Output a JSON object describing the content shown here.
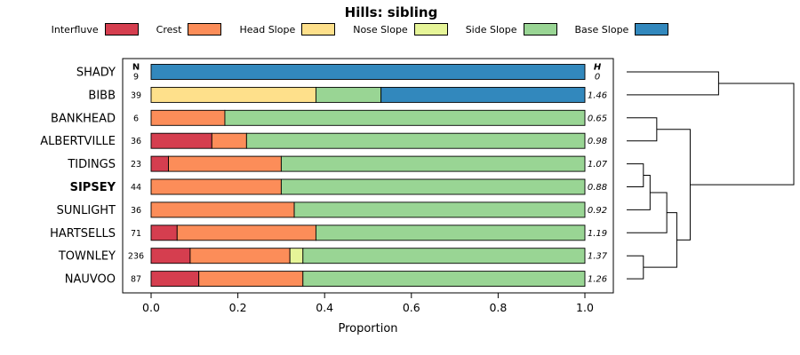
{
  "title": "Hills: sibling",
  "legend": [
    {
      "label": "Interfluve",
      "color": "#d53e4f"
    },
    {
      "label": "Crest",
      "color": "#fc8d59"
    },
    {
      "label": "Head Slope",
      "color": "#fee08b"
    },
    {
      "label": "Nose Slope",
      "color": "#e6f598"
    },
    {
      "label": "Side Slope",
      "color": "#99d594"
    },
    {
      "label": "Base Slope",
      "color": "#3288bd"
    }
  ],
  "chart_data": {
    "type": "bar",
    "orientation": "horizontal",
    "stacked": true,
    "title": "Hills: sibling",
    "xlabel": "Proportion",
    "xlim": [
      0,
      1
    ],
    "xticks": [
      "0.0",
      "0.2",
      "0.4",
      "0.6",
      "0.8",
      "1.0"
    ],
    "n_header": "N",
    "h_header": "H",
    "categories": [
      "SHADY",
      "BIBB",
      "BANKHEAD",
      "ALBERTVILLE",
      "TIDINGS",
      "SIPSEY",
      "SUNLIGHT",
      "HARTSELLS",
      "TOWNLEY",
      "NAUVOO"
    ],
    "bold_category": "SIPSEY",
    "n_values": [
      "9",
      "39",
      "6",
      "36",
      "23",
      "44",
      "36",
      "71",
      "236",
      "87"
    ],
    "h_values": [
      "0",
      "1.46",
      "0.65",
      "0.98",
      "1.07",
      "0.88",
      "0.92",
      "1.19",
      "1.37",
      "1.26"
    ],
    "series": [
      {
        "name": "Interfluve",
        "values": [
          0,
          0,
          0,
          0.14,
          0.04,
          0,
          0,
          0.06,
          0.09,
          0.11
        ]
      },
      {
        "name": "Crest",
        "values": [
          0,
          0,
          0.17,
          0.08,
          0.26,
          0.3,
          0.33,
          0.32,
          0.23,
          0.24
        ]
      },
      {
        "name": "Head Slope",
        "values": [
          0,
          0.38,
          0,
          0,
          0,
          0,
          0,
          0,
          0,
          0
        ]
      },
      {
        "name": "Nose Slope",
        "values": [
          0,
          0,
          0,
          0,
          0,
          0,
          0,
          0,
          0.03,
          0
        ]
      },
      {
        "name": "Side Slope",
        "values": [
          0,
          0.15,
          0.83,
          0.78,
          0.7,
          0.7,
          0.67,
          0.62,
          0.65,
          0.65
        ]
      },
      {
        "name": "Base Slope",
        "values": [
          1.0,
          0.47,
          0,
          0,
          0,
          0,
          0,
          0,
          0,
          0
        ]
      }
    ],
    "dendrogram": {
      "merges": [
        {
          "id": "M1",
          "a": "L4",
          "b": "L5",
          "h": 0.1
        },
        {
          "id": "M2",
          "a": "M1",
          "b": "L6",
          "h": 0.14
        },
        {
          "id": "M3",
          "a": "M2",
          "b": "L7",
          "h": 0.24
        },
        {
          "id": "M4",
          "a": "L8",
          "b": "L9",
          "h": 0.1
        },
        {
          "id": "M5",
          "a": "M3",
          "b": "M4",
          "h": 0.3
        },
        {
          "id": "M6",
          "a": "L2",
          "b": "L3",
          "h": 0.18
        },
        {
          "id": "M7",
          "a": "M6",
          "b": "M5",
          "h": 0.38
        },
        {
          "id": "M8",
          "a": "L0",
          "b": "L1",
          "h": 0.55
        },
        {
          "id": "M9",
          "a": "M8",
          "b": "M7",
          "h": 1.0
        }
      ]
    }
  }
}
